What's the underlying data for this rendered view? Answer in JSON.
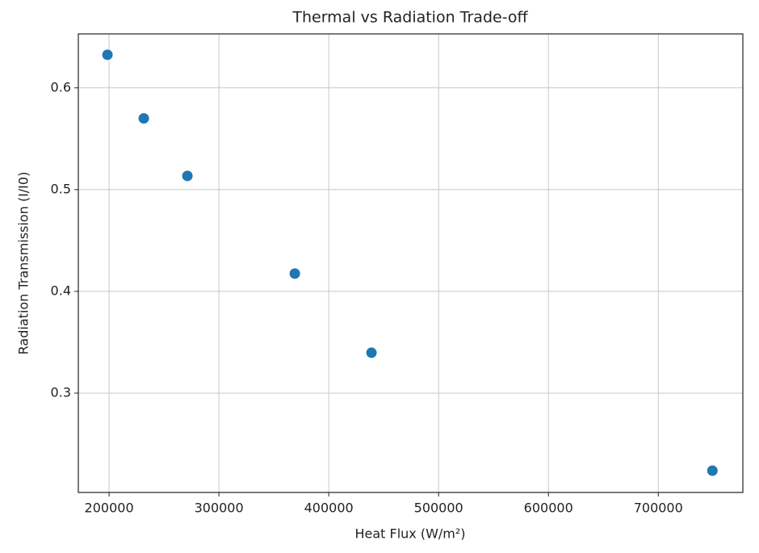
{
  "chart_data": {
    "type": "scatter",
    "title": "Thermal vs Radiation Trade-off",
    "x_label": "Heat Flux (W/m²)",
    "y_label": "Radiation Transmission (I/I0)",
    "x": [
      198500,
      231600,
      271300,
      369100,
      438900,
      749300
    ],
    "values": [
      0.6325,
      0.57,
      0.5135,
      0.4175,
      0.3397,
      0.2238
    ],
    "color": "#1f77b4",
    "xlim": [
      172000,
      777000
    ],
    "ylim": [
      0.2024,
      0.653
    ],
    "xticks": [
      200000,
      300000,
      400000,
      500000,
      600000,
      700000
    ],
    "yticks": [
      0.3,
      0.4,
      0.5,
      0.6
    ],
    "grid": true
  }
}
